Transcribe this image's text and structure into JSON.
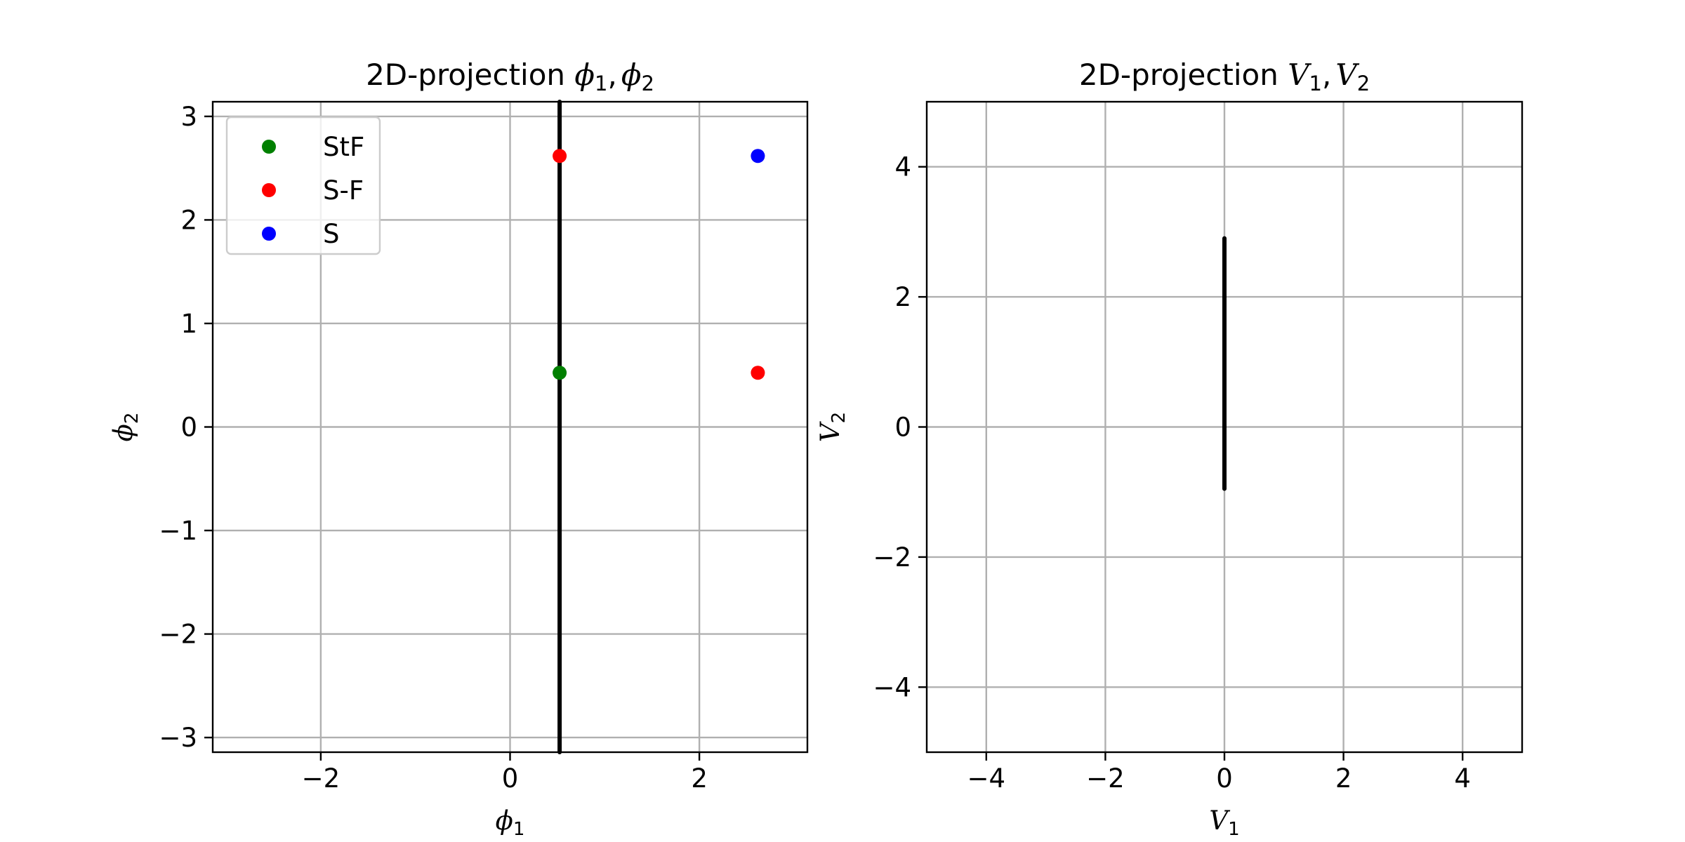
{
  "chart_data": [
    {
      "type": "scatter",
      "title": "2D-projection ϕ1,ϕ2",
      "title_parts": {
        "text": "2D-projection ",
        "sym1": "ϕ",
        "sub1": "1",
        "sep": ",",
        "sym2": "ϕ",
        "sub2": "2"
      },
      "xlabel": {
        "sym": "ϕ",
        "sub": "1"
      },
      "ylabel": {
        "sym": "ϕ",
        "sub": "2"
      },
      "xlim": [
        -3.1416,
        3.1416
      ],
      "ylim": [
        -3.1416,
        3.1416
      ],
      "xticks": [
        -2,
        0,
        2
      ],
      "yticks": [
        -3,
        -2,
        -1,
        0,
        1,
        2,
        3
      ],
      "grid": true,
      "legend": {
        "placement": "upper-left",
        "entries": [
          {
            "label": "StF",
            "color": "#008000"
          },
          {
            "label": "S-F",
            "color": "#ff0000"
          },
          {
            "label": "S",
            "color": "#0000ff"
          }
        ]
      },
      "series": [
        {
          "name": "StF",
          "color": "#008000",
          "points": [
            [
              0.5236,
              0.5236
            ]
          ]
        },
        {
          "name": "S-F",
          "color": "#ff0000",
          "points": [
            [
              0.5236,
              2.618
            ],
            [
              2.618,
              0.5236
            ]
          ]
        },
        {
          "name": "S",
          "color": "#0000ff",
          "points": [
            [
              2.618,
              2.618
            ]
          ]
        }
      ],
      "trajectory": {
        "color": "#000000",
        "x": [
          0.5236,
          0.5236
        ],
        "y": [
          -3.1416,
          3.1416
        ]
      }
    },
    {
      "type": "line",
      "title": "2D-projection V1,V2",
      "title_parts": {
        "text": "2D-projection ",
        "sym1": "V",
        "sub1": "1",
        "sep": ",",
        "sym2": "V",
        "sub2": "2"
      },
      "xlabel": {
        "sym": "V",
        "sub": "1"
      },
      "ylabel": {
        "sym": "V",
        "sub": "2"
      },
      "xlim": [
        -5,
        5
      ],
      "ylim": [
        -5,
        5
      ],
      "xticks": [
        -4,
        -2,
        0,
        2,
        4
      ],
      "yticks": [
        -4,
        -2,
        0,
        2,
        4
      ],
      "grid": true,
      "trajectory": {
        "color": "#000000",
        "x": [
          0,
          0
        ],
        "y": [
          -0.95,
          2.9
        ]
      }
    }
  ]
}
